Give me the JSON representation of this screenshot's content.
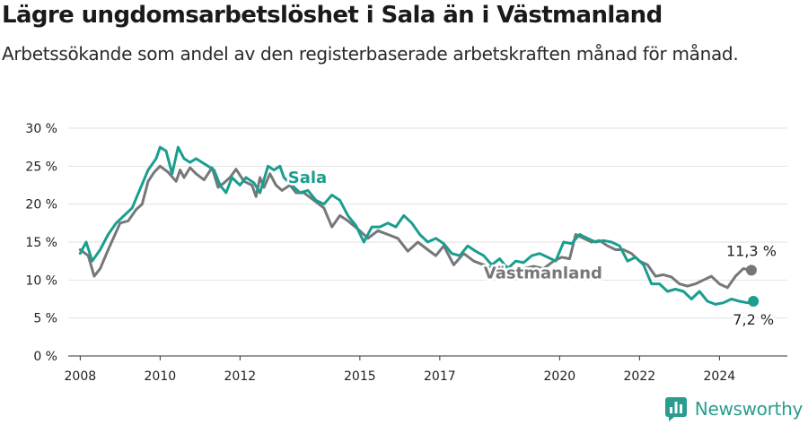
{
  "title": "Lägre ungdomsarbetslöshet i Sala än i Västmanland",
  "subtitle": "Arbetssökande som andel av den registerbaserade arbetskraften månad för månad.",
  "brand": "Newsworthy",
  "colors": {
    "sala": "#1a9e8f",
    "vastmanland": "#76777a",
    "grid": "#e2e2e2",
    "text": "#222222"
  },
  "chart_data": {
    "type": "line",
    "title": "Lägre ungdomsarbetslöshet i Sala än i Västmanland",
    "xlabel": "",
    "ylabel": "",
    "xlim": [
      2007.7,
      2025.7
    ],
    "ylim": [
      0,
      30
    ],
    "y_ticks": [
      0,
      5,
      10,
      15,
      20,
      25,
      30
    ],
    "y_tick_labels": [
      "0 %",
      "5 %",
      "10 %",
      "15 %",
      "20 %",
      "25 %",
      "30 %"
    ],
    "x_ticks": [
      2008,
      2010,
      2012,
      2015,
      2017,
      2020,
      2022,
      2024
    ],
    "x_tick_labels": [
      "2008",
      "2010",
      "2012",
      "2015",
      "2017",
      "2020",
      "2022",
      "2024"
    ],
    "grid": true,
    "series": [
      {
        "name": "Västmanland",
        "label": "Västmanland",
        "end_label": "11,3 %",
        "x": [
          2008.0,
          2008.2,
          2008.35,
          2008.5,
          2008.7,
          2009.0,
          2009.2,
          2009.4,
          2009.55,
          2009.7,
          2009.85,
          2010.0,
          2010.2,
          2010.4,
          2010.5,
          2010.6,
          2010.75,
          2010.9,
          2011.1,
          2011.3,
          2011.45,
          2011.6,
          2011.75,
          2011.9,
          2012.1,
          2012.3,
          2012.4,
          2012.5,
          2012.6,
          2012.75,
          2012.9,
          2013.05,
          2013.25,
          2013.4,
          2013.6,
          2013.85,
          2014.1,
          2014.3,
          2014.5,
          2014.7,
          2015.0,
          2015.2,
          2015.45,
          2015.7,
          2015.95,
          2016.2,
          2016.45,
          2016.7,
          2016.9,
          2017.1,
          2017.35,
          2017.6,
          2017.85,
          2018.1,
          2018.35,
          2018.6,
          2018.85,
          2019.1,
          2019.35,
          2019.6,
          2019.85,
          2020.05,
          2020.25,
          2020.4,
          2020.6,
          2020.8,
          2021.0,
          2021.2,
          2021.4,
          2021.6,
          2021.8,
          2022.0,
          2022.2,
          2022.4,
          2022.6,
          2022.8,
          2023.0,
          2023.2,
          2023.4,
          2023.6,
          2023.8,
          2024.0,
          2024.2,
          2024.4,
          2024.6,
          2024.8
        ],
        "values": [
          14.0,
          13.2,
          10.5,
          11.5,
          14.0,
          17.5,
          17.8,
          19.3,
          20.0,
          23.0,
          24.2,
          25.0,
          24.2,
          23.0,
          24.5,
          23.5,
          24.8,
          24.0,
          23.2,
          24.8,
          22.2,
          22.8,
          23.5,
          24.6,
          23.0,
          22.5,
          21.0,
          23.5,
          22.2,
          24.0,
          22.5,
          21.8,
          22.5,
          21.5,
          21.5,
          20.5,
          19.5,
          17.0,
          18.5,
          17.8,
          16.5,
          15.5,
          16.5,
          16.0,
          15.5,
          13.8,
          15.0,
          14.0,
          13.2,
          14.5,
          12.0,
          13.5,
          12.5,
          12.0,
          11.5,
          12.0,
          11.2,
          11.5,
          11.8,
          11.5,
          12.5,
          13.0,
          12.8,
          16.0,
          15.5,
          15.0,
          15.2,
          14.5,
          14.0,
          14.0,
          13.5,
          12.5,
          12.0,
          10.5,
          10.7,
          10.4,
          9.5,
          9.2,
          9.5,
          10.0,
          10.5,
          9.5,
          9.0,
          10.5,
          11.5,
          11.3
        ]
      },
      {
        "name": "Sala",
        "label": "Sala",
        "end_label": "7,2 %",
        "x": [
          2008.0,
          2008.15,
          2008.3,
          2008.5,
          2008.7,
          2008.9,
          2009.1,
          2009.3,
          2009.5,
          2009.7,
          2009.9,
          2010.0,
          2010.15,
          2010.3,
          2010.45,
          2010.6,
          2010.75,
          2010.9,
          2011.05,
          2011.2,
          2011.35,
          2011.5,
          2011.65,
          2011.8,
          2012.0,
          2012.15,
          2012.35,
          2012.5,
          2012.7,
          2012.85,
          2013.0,
          2013.1,
          2013.5,
          2013.7,
          2013.9,
          2014.1,
          2014.3,
          2014.5,
          2014.7,
          2014.9,
          2015.1,
          2015.3,
          2015.5,
          2015.7,
          2015.9,
          2016.1,
          2016.3,
          2016.5,
          2016.7,
          2016.9,
          2017.1,
          2017.3,
          2017.5,
          2017.7,
          2017.9,
          2018.1,
          2018.3,
          2018.5,
          2018.7,
          2018.9,
          2019.1,
          2019.3,
          2019.5,
          2019.7,
          2019.9,
          2020.1,
          2020.3,
          2020.5,
          2020.7,
          2020.9,
          2021.1,
          2021.3,
          2021.5,
          2021.7,
          2021.9,
          2022.1,
          2022.3,
          2022.5,
          2022.7,
          2022.9,
          2023.1,
          2023.3,
          2023.5,
          2023.7,
          2023.9,
          2024.1,
          2024.3,
          2024.5,
          2024.7,
          2024.85
        ],
        "values": [
          13.5,
          15.0,
          12.5,
          14.0,
          16.0,
          17.5,
          18.5,
          19.5,
          22.0,
          24.5,
          26.0,
          27.5,
          27.0,
          24.0,
          27.5,
          26.0,
          25.5,
          26.0,
          25.5,
          25.0,
          24.5,
          22.5,
          21.5,
          23.5,
          22.5,
          23.5,
          22.8,
          21.5,
          25.0,
          24.5,
          25.0,
          23.5,
          21.5,
          21.8,
          20.5,
          20.0,
          21.2,
          20.5,
          18.5,
          17.2,
          15.0,
          17.0,
          17.0,
          17.5,
          17.0,
          18.5,
          17.5,
          16.0,
          15.0,
          15.5,
          14.8,
          13.5,
          13.2,
          14.5,
          13.8,
          13.2,
          12.0,
          12.8,
          11.5,
          12.5,
          12.3,
          13.2,
          13.5,
          13.0,
          12.5,
          15.0,
          14.8,
          16.0,
          15.5,
          15.0,
          15.2,
          15.0,
          14.5,
          12.5,
          13.0,
          12.0,
          9.5,
          9.5,
          8.5,
          8.8,
          8.5,
          7.5,
          8.5,
          7.2,
          6.8,
          7.0,
          7.5,
          7.2,
          7.0,
          7.2
        ]
      }
    ]
  }
}
